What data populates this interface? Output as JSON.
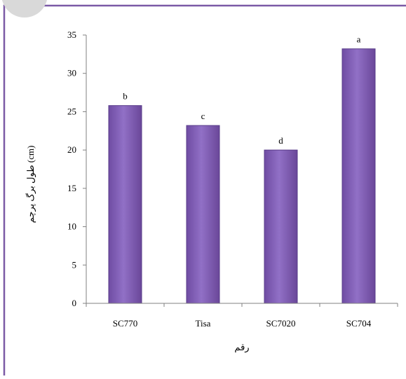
{
  "chart_data": {
    "type": "bar",
    "categories": [
      "SC770",
      "Tisa",
      "SC7020",
      "SC704"
    ],
    "values": [
      25.8,
      23.2,
      20.0,
      33.2
    ],
    "data_labels": [
      "b",
      "c",
      "d",
      "a"
    ],
    "ylabel": "طول برگ پرچم (cm)",
    "xlabel": "رقم",
    "ylim": [
      0,
      35
    ],
    "yticks": [
      0,
      5,
      10,
      15,
      20,
      25,
      30,
      35
    ],
    "grid": false,
    "legend": "none"
  },
  "colors": {
    "bar_fill": "#8460b8",
    "bar_stroke": "#5a3d8a",
    "frame_border": "#7b5aa6",
    "axis": "#808080"
  }
}
